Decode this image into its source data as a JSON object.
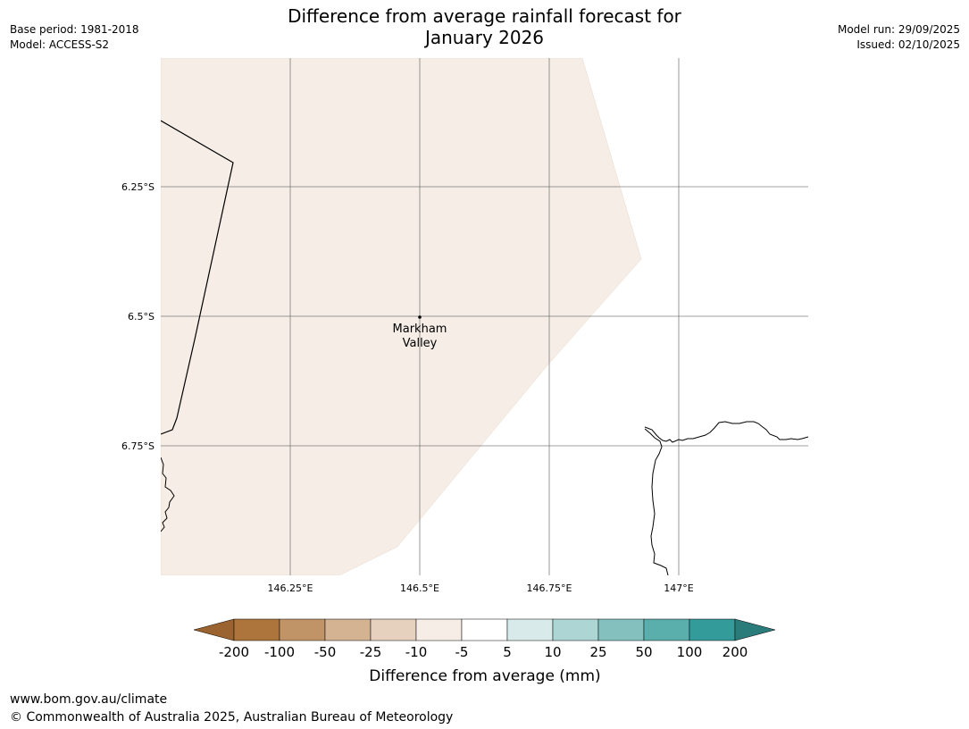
{
  "title_line1": "Difference from average rainfall forecast for",
  "title_line2": "January 2026",
  "meta_left": {
    "base_period": "Base period: 1981-2018",
    "model": "Model: ACCESS-S2"
  },
  "meta_right": {
    "model_run": "Model run: 29/09/2025",
    "issued": "Issued: 02/10/2025"
  },
  "map": {
    "lon_labels": [
      "146.25°E",
      "146.5°E",
      "146.75°E",
      "147°E"
    ],
    "lat_labels": [
      "6.25°S",
      "6.5°S",
      "6.75°S"
    ],
    "place": {
      "line1": "Markham",
      "line2": "Valley"
    },
    "shaded_category": "-10 to -5"
  },
  "legend": {
    "ticks": [
      "-200",
      "-100",
      "-50",
      "-25",
      "-10",
      "-5",
      "5",
      "10",
      "25",
      "50",
      "100",
      "200"
    ],
    "colors": [
      "#9a6330",
      "#ad743b",
      "#c19468",
      "#d4b393",
      "#e6d1be",
      "#f5ede6",
      "#ffffff",
      "#d8eaea",
      "#acd5d4",
      "#83c0be",
      "#5aaeac",
      "#339b99",
      "#2a7c7b"
    ],
    "label": "Difference from average (mm)"
  },
  "footer": {
    "url": "www.bom.gov.au/climate",
    "copyright": "© Commonwealth of Australia 2025, Australian Bureau of Meteorology"
  }
}
